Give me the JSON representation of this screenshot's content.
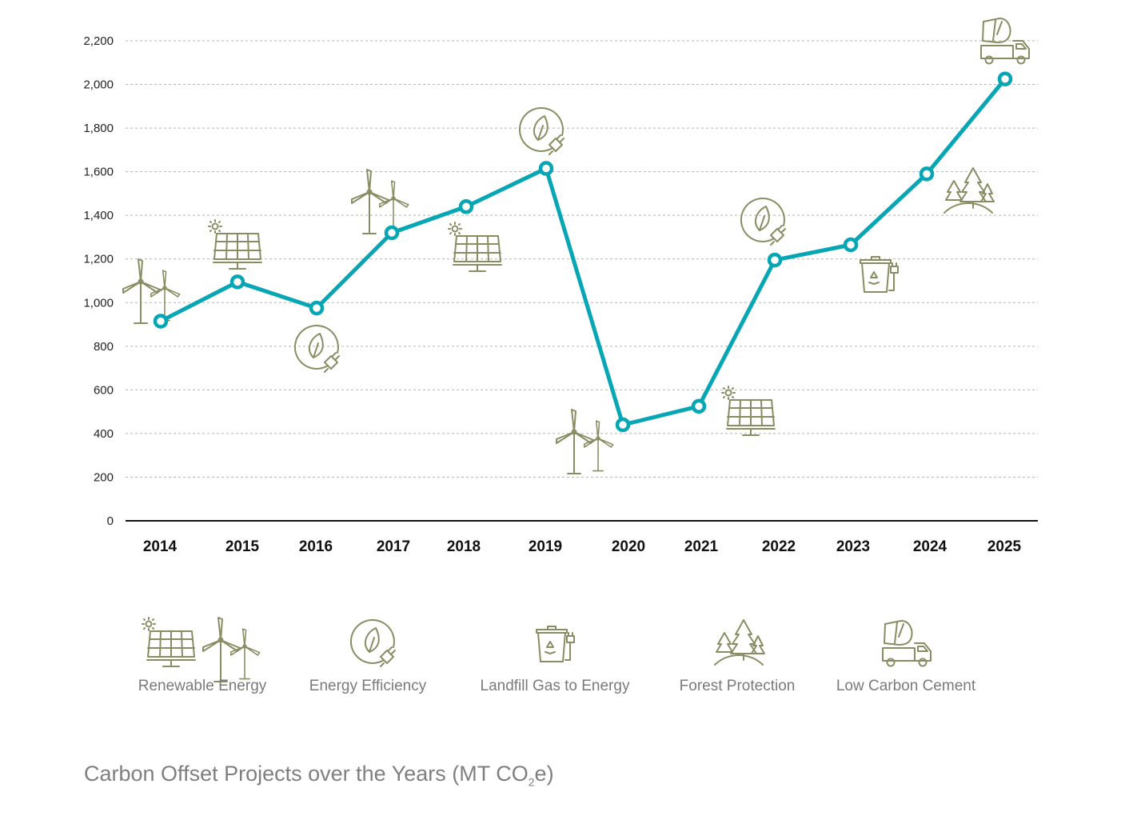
{
  "chart_data": {
    "type": "line",
    "x": [
      "2014",
      "2015",
      "2016",
      "2017",
      "2018",
      "2019",
      "2020",
      "2021",
      "2022",
      "2023",
      "2024",
      "2025"
    ],
    "series": [
      {
        "values": [
          915,
          1095,
          975,
          1320,
          1440,
          1615,
          440,
          525,
          1195,
          1265,
          1590,
          2025
        ]
      }
    ],
    "project_icons": [
      "wind-turbines",
      "solar-panel",
      "energy-efficiency",
      "wind-turbines",
      "solar-panel",
      "energy-efficiency",
      "wind-turbines",
      "solar-panel",
      "energy-efficiency",
      "landfill-gas",
      "forest",
      "cement-truck"
    ],
    "ylim": [
      0,
      2200
    ],
    "yticks": [
      "0",
      "200",
      "400",
      "600",
      "800",
      "1,000",
      "1,200",
      "1,400",
      "1,600",
      "1,800",
      "2,000",
      "2,200"
    ],
    "grid": true,
    "line_color": "#06a6b5",
    "icon_color": "#8a8d63",
    "title": {
      "main": "Carbon Offset Projects over the Years (MT CO",
      "sub": "2",
      "tail": "e)"
    }
  },
  "legend": [
    {
      "label": "Renewable Energy",
      "icon": "solar-and-wind"
    },
    {
      "label": "Energy Efficiency",
      "icon": "energy-efficiency"
    },
    {
      "label": "Landfill Gas to Energy",
      "icon": "landfill-gas"
    },
    {
      "label": "Forest Protection",
      "icon": "forest"
    },
    {
      "label": "Low Carbon Cement",
      "icon": "cement-truck"
    }
  ]
}
